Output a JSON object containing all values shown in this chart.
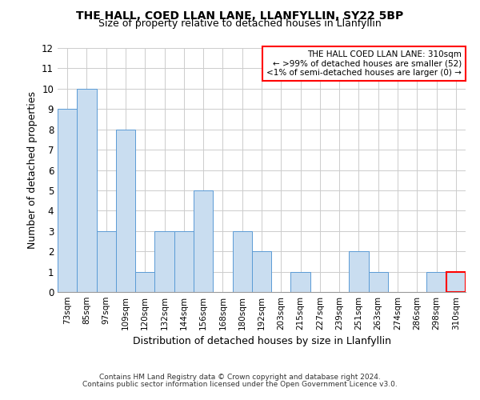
{
  "title": "THE HALL, COED LLAN LANE, LLANFYLLIN, SY22 5BP",
  "subtitle": "Size of property relative to detached houses in Llanfyllin",
  "xlabel": "Distribution of detached houses by size in Llanfyllin",
  "ylabel": "Number of detached properties",
  "categories": [
    "73sqm",
    "85sqm",
    "97sqm",
    "109sqm",
    "120sqm",
    "132sqm",
    "144sqm",
    "156sqm",
    "168sqm",
    "180sqm",
    "192sqm",
    "203sqm",
    "215sqm",
    "227sqm",
    "239sqm",
    "251sqm",
    "263sqm",
    "274sqm",
    "286sqm",
    "298sqm",
    "310sqm"
  ],
  "values": [
    9,
    10,
    3,
    8,
    1,
    3,
    3,
    5,
    0,
    3,
    2,
    0,
    1,
    0,
    0,
    2,
    1,
    0,
    0,
    1,
    1
  ],
  "bar_color": "#c9ddf0",
  "bar_edge_color": "#5b9bd5",
  "highlight_index": 20,
  "highlight_box_color": "#ff0000",
  "ylim": [
    0,
    12
  ],
  "yticks": [
    0,
    1,
    2,
    3,
    4,
    5,
    6,
    7,
    8,
    9,
    10,
    11,
    12
  ],
  "annotation_title": "THE HALL COED LLAN LANE: 310sqm",
  "annotation_line1": "← >99% of detached houses are smaller (52)",
  "annotation_line2": "<1% of semi-detached houses are larger (0) →",
  "footnote1": "Contains HM Land Registry data © Crown copyright and database right 2024.",
  "footnote2": "Contains public sector information licensed under the Open Government Licence v3.0.",
  "bg_color": "#ffffff",
  "grid_color": "#cccccc"
}
